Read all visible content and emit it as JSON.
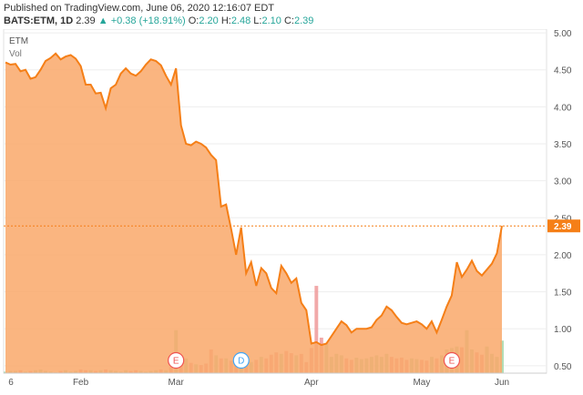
{
  "header": {
    "published": "Published on TradingView.com, June 06, 2020 12:16:07 EDT",
    "symbol": "BATS:ETM, 1D",
    "last": "2.39",
    "change": "+0.38 (+18.91%)",
    "o_label": "O:",
    "o_value": "2.20",
    "h_label": "H:",
    "h_value": "2.48",
    "l_label": "L:",
    "l_value": "2.10",
    "c_label": "C:",
    "c_value": "2.39"
  },
  "legend": {
    "symbol": "ETM",
    "volume": "Vol"
  },
  "colors": {
    "line": "#f57f17",
    "area": "#f9a86a",
    "vol_up": "#a5d6a7",
    "vol_down": "#ef9a9a",
    "vol_big_down": "#ef9a9a",
    "last_badge": "#f57f17",
    "axis_text": "#555555",
    "grid": "#eeeeee"
  },
  "chart_data": {
    "type": "area",
    "y_axis_ticks": [
      "5.00",
      "4.50",
      "4.00",
      "3.50",
      "3.00",
      "2.50",
      "2.00",
      "1.50",
      "1.00",
      "0.50"
    ],
    "ylim": [
      0.4,
      5.05
    ],
    "x_axis_ticks": [
      "6",
      "Feb",
      "Mar",
      "Apr",
      "May",
      "Jun"
    ],
    "last_price": "2.39",
    "series": [
      {
        "name": "ETM",
        "values": [
          4.6,
          4.57,
          4.58,
          4.48,
          4.5,
          4.38,
          4.4,
          4.5,
          4.62,
          4.66,
          4.72,
          4.64,
          4.68,
          4.7,
          4.65,
          4.55,
          4.3,
          4.3,
          4.18,
          4.19,
          3.98,
          4.25,
          4.3,
          4.45,
          4.52,
          4.45,
          4.42,
          4.48,
          4.57,
          4.64,
          4.62,
          4.56,
          4.42,
          4.3,
          4.52,
          3.75,
          3.5,
          3.48,
          3.53,
          3.5,
          3.45,
          3.35,
          3.28,
          2.65,
          2.68,
          2.35,
          2.0,
          2.37,
          1.75,
          1.9,
          1.58,
          1.82,
          1.75,
          1.55,
          1.48,
          1.85,
          1.75,
          1.62,
          1.68,
          1.35,
          1.25,
          0.8,
          0.82,
          0.78,
          0.8,
          0.9,
          1.0,
          1.1,
          1.05,
          0.95,
          1.0,
          1.0,
          1.0,
          1.02,
          1.12,
          1.18,
          1.3,
          1.25,
          1.16,
          1.08,
          1.06,
          1.08,
          1.1,
          1.06,
          1.0,
          1.1,
          0.95,
          1.12,
          1.3,
          1.45,
          1.9,
          1.7,
          1.8,
          1.92,
          1.78,
          1.72,
          1.8,
          1.88,
          2.02,
          2.39
        ]
      }
    ],
    "volume": {
      "name": "Vol",
      "values": [
        0.42,
        0.43,
        0.43,
        0.44,
        0.42,
        0.43,
        0.44,
        0.45,
        0.43,
        0.42,
        0.41,
        0.43,
        0.44,
        0.42,
        0.43,
        0.45,
        0.44,
        0.44,
        0.43,
        0.44,
        0.45,
        0.44,
        0.43,
        0.42,
        0.44,
        0.43,
        0.44,
        0.43,
        0.42,
        0.43,
        0.44,
        0.45,
        0.44,
        0.48,
        0.98,
        0.55,
        0.6,
        0.54,
        0.52,
        0.51,
        0.53,
        0.72,
        0.64,
        0.6,
        0.6,
        0.57,
        0.55,
        0.56,
        0.57,
        0.55,
        0.58,
        0.62,
        0.6,
        0.65,
        0.68,
        0.66,
        0.7,
        0.67,
        0.64,
        0.66,
        0.55,
        0.74,
        1.58,
        0.88,
        0.8,
        0.62,
        0.66,
        0.64,
        0.6,
        0.58,
        0.61,
        0.59,
        0.6,
        0.62,
        0.64,
        0.62,
        0.66,
        0.62,
        0.6,
        0.61,
        0.58,
        0.6,
        0.59,
        0.58,
        0.57,
        0.62,
        0.6,
        0.64,
        0.72,
        0.74,
        0.76,
        0.75,
        0.98,
        0.72,
        0.68,
        0.65,
        0.76,
        0.66,
        0.62,
        0.84
      ],
      "down_days": [
        3,
        5,
        11,
        15,
        16,
        18,
        20,
        25,
        26,
        31,
        33,
        35,
        37,
        39,
        40,
        41,
        43,
        45,
        46,
        48,
        50,
        52,
        53,
        54,
        56,
        57,
        59,
        60,
        61,
        62,
        63,
        68,
        69,
        77,
        78,
        79,
        80,
        83,
        84,
        86,
        91,
        94,
        95
      ]
    },
    "events": [
      {
        "label": "E",
        "at_index": 34
      },
      {
        "label": "D",
        "at_index": 47
      },
      {
        "label": "E",
        "at_index": 89
      }
    ]
  }
}
